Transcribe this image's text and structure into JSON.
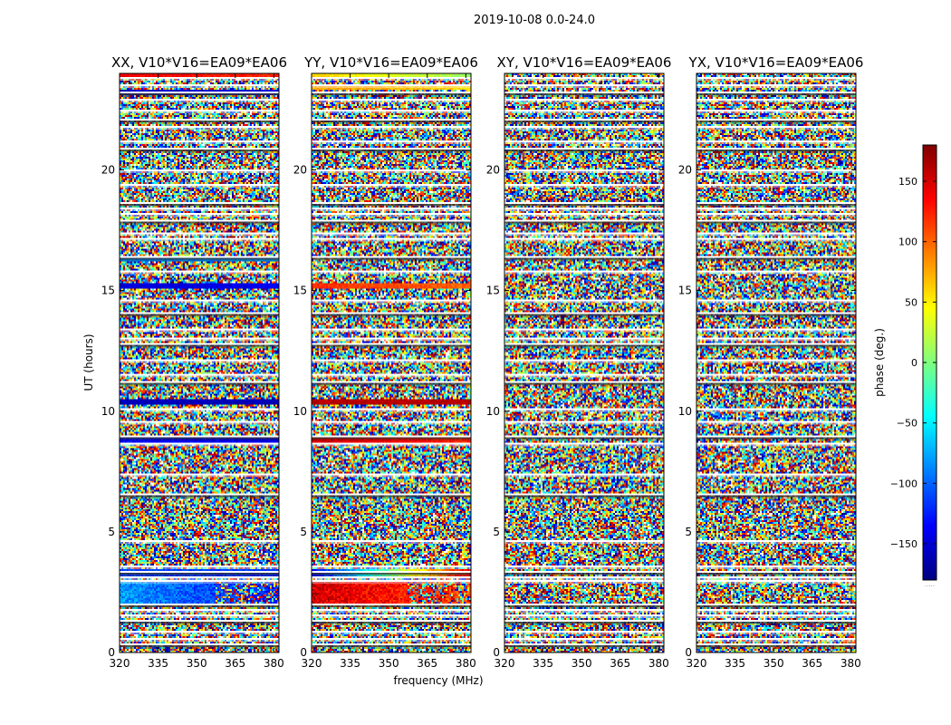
{
  "chart_data": {
    "type": "heatmap",
    "suptitle": "2019-10-08 0.0-24.0",
    "xlabel": "frequency (MHz)",
    "ylabel": "UT (hours)",
    "xlim": [
      320,
      382
    ],
    "ylim": [
      0,
      24
    ],
    "xticks": [
      320,
      335,
      350,
      365,
      380
    ],
    "yticks": [
      0,
      5,
      10,
      15,
      20
    ],
    "colorbar": {
      "label": "phase (deg.)",
      "range": [
        -180,
        180
      ],
      "ticks": [
        -150,
        -100,
        -50,
        0,
        50,
        100,
        150
      ],
      "tick_labels": [
        "−150",
        "−100",
        "−50",
        "0",
        "50",
        "100",
        "150"
      ],
      "colormap": "jet",
      "jet_stops": [
        "#00007f",
        "#0000ff",
        "#007fff",
        "#00ffff",
        "#7fff7f",
        "#ffff00",
        "#ff7f00",
        "#ff0000",
        "#7f0000"
      ],
      "extension_mark": "....."
    },
    "panels": [
      {
        "title": "XX, V10*V16=EA09*EA06",
        "pol": "XX"
      },
      {
        "title": "YY, V10*V16=EA09*EA06",
        "pol": "YY"
      },
      {
        "title": "XY, V10*V16=EA09*EA06",
        "pol": "XY"
      },
      {
        "title": "YX, V10*V16=EA09*EA06",
        "pol": "YX"
      }
    ],
    "flagged_gaps_ut_hours": [
      0.35,
      0.55,
      0.85,
      1.3,
      1.55,
      1.75,
      2.0,
      3.0,
      3.15,
      3.35,
      3.6,
      4.6,
      6.6,
      7.4,
      8.7,
      9.0,
      9.6,
      10.1,
      11.2,
      11.5,
      12.1,
      12.8,
      13.0,
      13.4,
      14.1,
      14.6,
      15.8,
      16.4,
      17.1,
      17.4,
      17.9,
      18.2,
      18.4,
      18.6,
      19.4,
      20.0,
      20.9,
      21.2,
      21.8,
      22.1,
      22.5,
      22.9,
      23.2,
      23.5,
      23.8
    ],
    "coherent_bands": {
      "XX": [
        {
          "ut": [
            2.0,
            2.95
          ],
          "phase_lo": -80,
          "phase_hi": -130,
          "spread": 40
        },
        {
          "ut": [
            3.05,
            3.45
          ],
          "phase_lo": -110,
          "phase_hi": -120,
          "spread": 20
        },
        {
          "ut": [
            8.7,
            8.9
          ],
          "phase_lo": -130,
          "phase_hi": -140,
          "spread": 20
        },
        {
          "ut": [
            10.3,
            10.5
          ],
          "phase_lo": -160,
          "phase_hi": -160,
          "spread": 15
        },
        {
          "ut": [
            15.1,
            15.3
          ],
          "phase_lo": -150,
          "phase_hi": -140,
          "spread": 20
        },
        {
          "ut": [
            16.2,
            16.35
          ],
          "phase_lo": -90,
          "phase_hi": -80,
          "spread": 20
        },
        {
          "ut": [
            23.1,
            23.3
          ],
          "phase_lo": -160,
          "phase_hi": -150,
          "spread": 15
        },
        {
          "ut": [
            23.85,
            24.0
          ],
          "phase_lo": 140,
          "phase_hi": 120,
          "spread": 20
        }
      ],
      "YY": [
        {
          "ut": [
            2.0,
            2.95
          ],
          "phase_lo": 150,
          "phase_hi": 110,
          "spread": 45
        },
        {
          "ut": [
            3.05,
            3.45
          ],
          "phase_lo": -140,
          "phase_hi": 140,
          "spread": 30
        },
        {
          "ut": [
            8.7,
            8.9
          ],
          "phase_lo": 150,
          "phase_hi": 120,
          "spread": 20
        },
        {
          "ut": [
            10.3,
            10.5
          ],
          "phase_lo": 160,
          "phase_hi": 160,
          "spread": 15
        },
        {
          "ut": [
            15.1,
            15.3
          ],
          "phase_lo": 120,
          "phase_hi": 100,
          "spread": 20
        },
        {
          "ut": [
            23.3,
            23.5
          ],
          "phase_lo": 80,
          "phase_hi": 60,
          "spread": 20
        },
        {
          "ut": [
            23.85,
            24.0
          ],
          "phase_lo": 60,
          "phase_hi": 10,
          "spread": 20
        }
      ]
    }
  }
}
